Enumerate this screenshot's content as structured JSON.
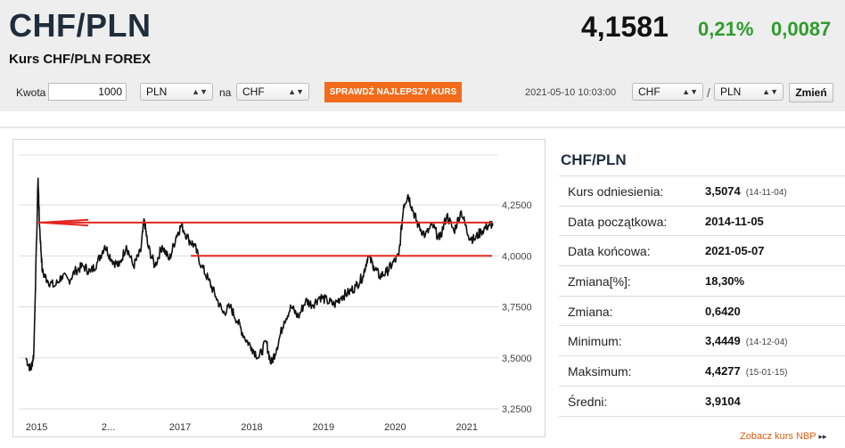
{
  "header": {
    "title": "CHF/PLN",
    "subtitle": "Kurs CHF/PLN FOREX",
    "rate": "4,1581",
    "change_pct": "0,21%",
    "change_abs": "0,0087"
  },
  "converter": {
    "amount_label": "Kwota",
    "amount_value": "1000",
    "from_currency": "PLN",
    "na_label": "na",
    "to_currency": "CHF",
    "best_rate_button": "SPRAWDŹ NAJLEPSZY KURS",
    "timestamp": "2021-05-10 10:03:00",
    "pair_from": "CHF",
    "pair_sep": "/",
    "pair_to": "PLN",
    "change_button": "Zmień"
  },
  "panel": {
    "title": "CHF/PLN",
    "rows": [
      {
        "label": "Kurs odniesienia:",
        "value": "3,5074",
        "date": "(14-11-04)"
      },
      {
        "label": "Data początkowa:",
        "value": "2014-11-05",
        "date": ""
      },
      {
        "label": "Data końcowa:",
        "value": "2021-05-07",
        "date": ""
      },
      {
        "label": "Zmiana[%]:",
        "value": "18,30%",
        "date": ""
      },
      {
        "label": "Zmiana:",
        "value": "0,6420",
        "date": ""
      },
      {
        "label": "Minimum:",
        "value": "3,4449",
        "date": "(14-12-04)"
      },
      {
        "label": "Maksimum:",
        "value": "4,4277",
        "date": "(15-01-15)"
      },
      {
        "label": "Średni:",
        "value": "3,9104",
        "date": ""
      }
    ],
    "nbp_link": "Zobacz kurs NBP",
    "nbp_arrow": "▸▸"
  },
  "chart_data": {
    "type": "line",
    "title": "",
    "xlabel": "",
    "ylabel": "",
    "x_tick_labels": [
      "2015",
      "2...",
      "2017",
      "2018",
      "2019",
      "2020",
      "2021"
    ],
    "y_tick_labels": [
      "4,2500",
      "4,0000",
      "3,7500",
      "3,5000",
      "3,2500"
    ],
    "ylim": [
      3.25,
      4.3
    ],
    "grid": true,
    "series": [
      {
        "values": [
          [
            2014.85,
            3.5
          ],
          [
            2014.92,
            3.44
          ],
          [
            2014.96,
            3.52
          ],
          [
            2015.02,
            4.38
          ],
          [
            2015.04,
            4.15
          ],
          [
            2015.08,
            3.92
          ],
          [
            2015.15,
            3.88
          ],
          [
            2015.25,
            3.85
          ],
          [
            2015.35,
            3.9
          ],
          [
            2015.45,
            3.88
          ],
          [
            2015.55,
            3.93
          ],
          [
            2015.65,
            3.95
          ],
          [
            2015.75,
            3.92
          ],
          [
            2015.85,
            3.97
          ],
          [
            2015.95,
            4.05
          ],
          [
            2016.05,
            3.98
          ],
          [
            2016.15,
            3.95
          ],
          [
            2016.25,
            4.05
          ],
          [
            2016.35,
            3.95
          ],
          [
            2016.45,
            4.02
          ],
          [
            2016.5,
            4.18
          ],
          [
            2016.55,
            4.05
          ],
          [
            2016.65,
            3.95
          ],
          [
            2016.75,
            4.05
          ],
          [
            2016.85,
            3.98
          ],
          [
            2016.95,
            4.1
          ],
          [
            2017.02,
            4.15
          ],
          [
            2017.12,
            4.08
          ],
          [
            2017.2,
            4.05
          ],
          [
            2017.3,
            3.95
          ],
          [
            2017.4,
            3.88
          ],
          [
            2017.5,
            3.8
          ],
          [
            2017.6,
            3.72
          ],
          [
            2017.7,
            3.75
          ],
          [
            2017.8,
            3.68
          ],
          [
            2017.9,
            3.6
          ],
          [
            2018.0,
            3.55
          ],
          [
            2018.1,
            3.5
          ],
          [
            2018.2,
            3.58
          ],
          [
            2018.27,
            3.47
          ],
          [
            2018.35,
            3.55
          ],
          [
            2018.45,
            3.68
          ],
          [
            2018.55,
            3.75
          ],
          [
            2018.65,
            3.7
          ],
          [
            2018.75,
            3.78
          ],
          [
            2018.85,
            3.76
          ],
          [
            2018.95,
            3.8
          ],
          [
            2019.05,
            3.78
          ],
          [
            2019.15,
            3.76
          ],
          [
            2019.25,
            3.8
          ],
          [
            2019.35,
            3.82
          ],
          [
            2019.45,
            3.85
          ],
          [
            2019.55,
            3.9
          ],
          [
            2019.62,
            4.0
          ],
          [
            2019.7,
            3.95
          ],
          [
            2019.78,
            3.9
          ],
          [
            2019.88,
            3.92
          ],
          [
            2019.96,
            3.96
          ],
          [
            2020.05,
            4.0
          ],
          [
            2020.12,
            4.25
          ],
          [
            2020.18,
            4.3
          ],
          [
            2020.25,
            4.22
          ],
          [
            2020.32,
            4.15
          ],
          [
            2020.42,
            4.1
          ],
          [
            2020.52,
            4.15
          ],
          [
            2020.62,
            4.08
          ],
          [
            2020.72,
            4.2
          ],
          [
            2020.82,
            4.12
          ],
          [
            2020.92,
            4.22
          ],
          [
            2021.02,
            4.1
          ],
          [
            2021.1,
            4.08
          ],
          [
            2021.2,
            4.12
          ],
          [
            2021.3,
            4.15
          ],
          [
            2021.36,
            4.1581
          ]
        ]
      }
    ],
    "lines": [
      {
        "from": [
          2015.02,
          4.163
        ],
        "to": [
          2021.35,
          4.163
        ],
        "color": "#e52620"
      },
      {
        "from": [
          2017.15,
          4.0
        ],
        "to": [
          2021.35,
          4.0
        ],
        "color": "#e52620"
      }
    ],
    "arrow": {
      "from": [
        2015.72,
        4.177
      ],
      "to": [
        2015.06,
        4.163
      ],
      "color": "#e52620"
    },
    "colors": {
      "line": "#111111",
      "grid": "#dddddd",
      "annotation": "#e52620"
    }
  }
}
